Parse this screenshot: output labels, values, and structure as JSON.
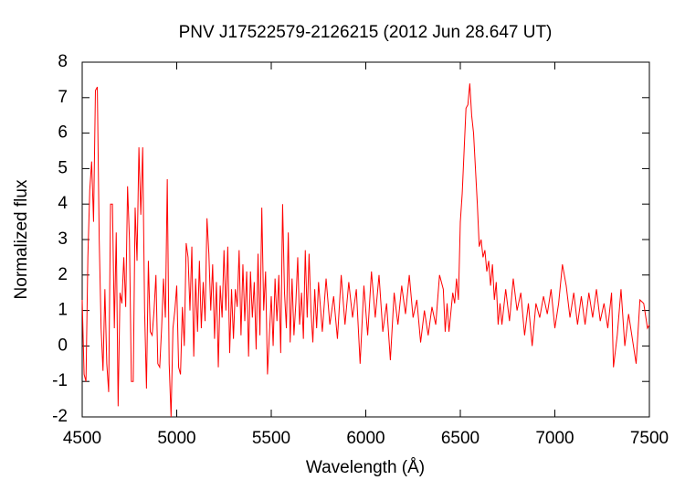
{
  "chart_data": {
    "type": "line",
    "title": "PNV J17522579-2126215 (2012 Jun 28.647 UT)",
    "x_label": "Wavelength (Å)",
    "y_label": "Normalized flux",
    "color": "#ff0000",
    "xlim": [
      4500,
      7500
    ],
    "xticks": [
      4500,
      5000,
      5500,
      6000,
      6500,
      7000,
      7500
    ],
    "ylim": [
      -2,
      8
    ],
    "yticks": [
      -2,
      -1,
      0,
      1,
      2,
      3,
      4,
      5,
      6,
      7,
      8
    ],
    "x": [
      4500,
      4510,
      4520,
      4530,
      4540,
      4550,
      4560,
      4570,
      4580,
      4590,
      4600,
      4610,
      4620,
      4630,
      4640,
      4650,
      4660,
      4670,
      4680,
      4690,
      4700,
      4710,
      4720,
      4730,
      4740,
      4750,
      4760,
      4770,
      4780,
      4790,
      4800,
      4810,
      4820,
      4830,
      4840,
      4850,
      4860,
      4870,
      4880,
      4890,
      4900,
      4910,
      4920,
      4930,
      4940,
      4950,
      4960,
      4970,
      4980,
      4990,
      5000,
      5010,
      5020,
      5030,
      5040,
      5050,
      5060,
      5070,
      5080,
      5090,
      5100,
      5110,
      5120,
      5130,
      5140,
      5150,
      5160,
      5170,
      5180,
      5190,
      5200,
      5210,
      5220,
      5230,
      5240,
      5250,
      5260,
      5270,
      5280,
      5290,
      5300,
      5310,
      5320,
      5330,
      5340,
      5350,
      5360,
      5370,
      5380,
      5390,
      5400,
      5410,
      5420,
      5430,
      5440,
      5450,
      5460,
      5470,
      5480,
      5490,
      5500,
      5510,
      5520,
      5530,
      5540,
      5550,
      5560,
      5570,
      5580,
      5590,
      5600,
      5610,
      5620,
      5630,
      5640,
      5650,
      5660,
      5670,
      5680,
      5690,
      5700,
      5710,
      5720,
      5730,
      5740,
      5750,
      5770,
      5790,
      5810,
      5830,
      5850,
      5870,
      5890,
      5910,
      5930,
      5950,
      5970,
      5990,
      6010,
      6030,
      6050,
      6070,
      6090,
      6110,
      6130,
      6150,
      6170,
      6190,
      6210,
      6230,
      6250,
      6270,
      6290,
      6310,
      6330,
      6350,
      6370,
      6390,
      6410,
      6420,
      6430,
      6440,
      6460,
      6470,
      6480,
      6490,
      6500,
      6510,
      6520,
      6530,
      6540,
      6550,
      6560,
      6570,
      6580,
      6590,
      6600,
      6610,
      6620,
      6630,
      6640,
      6650,
      6660,
      6670,
      6680,
      6690,
      6700,
      6710,
      6720,
      6740,
      6760,
      6780,
      6800,
      6820,
      6840,
      6860,
      6880,
      6900,
      6920,
      6940,
      6960,
      6980,
      7000,
      7020,
      7040,
      7060,
      7080,
      7100,
      7120,
      7140,
      7160,
      7180,
      7200,
      7220,
      7240,
      7260,
      7280,
      7300,
      7310,
      7330,
      7350,
      7370,
      7390,
      7410,
      7430,
      7450,
      7470,
      7490,
      7500
    ],
    "values": [
      1.3,
      -0.8,
      -1.0,
      2.5,
      4.4,
      5.2,
      3.5,
      7.2,
      7.3,
      3.0,
      0.5,
      -0.7,
      1.6,
      -0.5,
      -1.3,
      4.0,
      4.0,
      0.5,
      3.2,
      -1.7,
      1.5,
      1.2,
      2.5,
      1.1,
      4.5,
      3.0,
      -1.0,
      -1.0,
      3.9,
      2.4,
      5.6,
      3.7,
      5.6,
      1.0,
      -1.2,
      2.4,
      0.4,
      0.3,
      1.0,
      2.0,
      -0.5,
      -0.6,
      0.5,
      1.9,
      0.8,
      4.7,
      -0.5,
      -2.0,
      0.5,
      1.0,
      1.7,
      -0.6,
      -0.8,
      1.1,
      0.0,
      2.9,
      2.5,
      1.0,
      2.8,
      -0.3,
      1.9,
      0.4,
      2.4,
      0.5,
      1.8,
      0.7,
      3.6,
      2.6,
      1.0,
      2.3,
      0.2,
      1.8,
      -0.6,
      1.7,
      0.8,
      2.7,
      1.0,
      2.8,
      -0.2,
      1.6,
      0.2,
      1.6,
      1.1,
      2.7,
      0.3,
      2.3,
      0.7,
      2.1,
      -0.3,
      2.1,
      0.8,
      1.8,
      -0.1,
      2.6,
      0.3,
      3.9,
      1.0,
      2.1,
      -0.8,
      0.3,
      1.4,
      0.0,
      1.9,
      0.7,
      2.0,
      -0.2,
      4.0,
      1.5,
      0.5,
      3.2,
      0.1,
      1.9,
      0.3,
      1.2,
      2.5,
      0.6,
      1.5,
      0.2,
      2.7,
      0.8,
      2.6,
      1.0,
      0.1,
      1.6,
      0.5,
      1.8,
      0.4,
      1.9,
      0.6,
      1.4,
      0.2,
      2.0,
      0.6,
      1.8,
      0.8,
      1.6,
      -0.5,
      1.7,
      0.3,
      2.1,
      0.8,
      2.0,
      0.4,
      1.2,
      -0.4,
      1.5,
      0.6,
      1.7,
      0.9,
      2.0,
      0.8,
      1.3,
      0.1,
      1.0,
      0.3,
      1.1,
      0.6,
      2.0,
      1.6,
      0.4,
      1.2,
      0.4,
      1.5,
      1.2,
      1.9,
      1.3,
      3.5,
      4.3,
      5.5,
      6.7,
      6.8,
      7.4,
      6.5,
      6.0,
      5.0,
      4.0,
      2.8,
      3.0,
      2.5,
      2.7,
      2.1,
      2.4,
      1.7,
      2.3,
      1.3,
      1.8,
      0.6,
      1.2,
      0.6,
      1.6,
      0.7,
      1.9,
      1.0,
      1.5,
      0.3,
      1.2,
      0.0,
      1.2,
      0.8,
      1.4,
      0.9,
      1.6,
      0.5,
      1.2,
      2.3,
      1.7,
      0.8,
      1.5,
      0.6,
      1.4,
      0.6,
      1.5,
      0.8,
      1.6,
      0.7,
      1.2,
      0.5,
      1.5,
      -0.6,
      0.3,
      1.6,
      0.0,
      0.9,
      0.2,
      -0.5,
      1.3,
      1.2,
      0.5,
      0.6
    ]
  }
}
